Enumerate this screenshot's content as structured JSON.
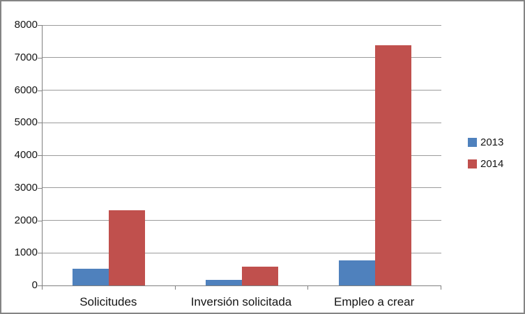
{
  "chart_data": {
    "type": "bar",
    "categories": [
      "Solicitudes",
      "Inversión solicitada",
      "Empleo a crear"
    ],
    "series": [
      {
        "name": "2013",
        "color": "#4F81BD",
        "values": [
          520,
          180,
          760
        ]
      },
      {
        "name": "2014",
        "color": "#C0504D",
        "values": [
          2310,
          580,
          7380
        ]
      }
    ],
    "title": "",
    "xlabel": "",
    "ylabel": "",
    "ylim": [
      0,
      8000
    ],
    "ytick_step": 1000,
    "yticks": [
      0,
      1000,
      2000,
      3000,
      4000,
      5000,
      6000,
      7000,
      8000
    ],
    "grid": true,
    "legend_position": "right",
    "colors": {
      "grid": "#9b9b9b",
      "axis": "#808080",
      "figure_border": "#848484",
      "text": "#141414",
      "background": "#ffffff"
    }
  }
}
